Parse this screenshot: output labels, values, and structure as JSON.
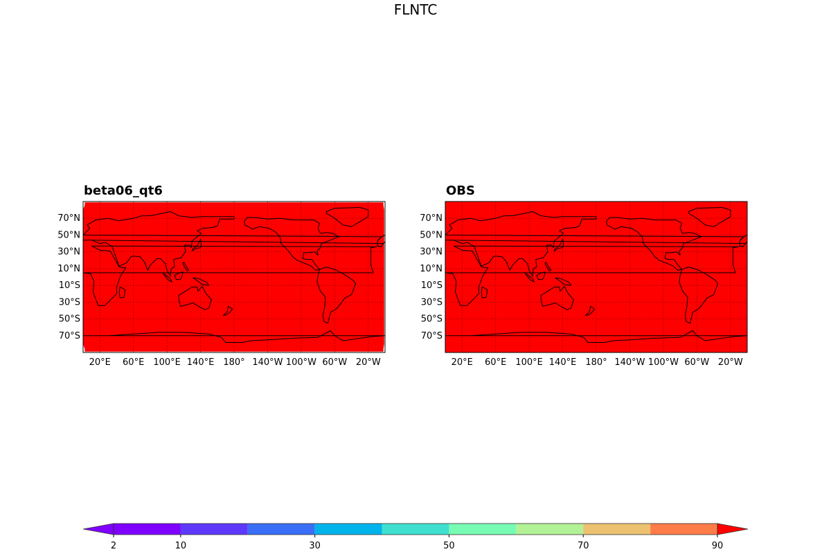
{
  "figure": {
    "title": "FLNTC"
  },
  "colors": {
    "field_fill": "#ff0000",
    "grid_line": "#8b0000",
    "coastline": "#000000"
  },
  "panels": [
    {
      "id": "left",
      "title": "beta06_qt6",
      "field_value_category": "above 90",
      "missing_polar_edges": true
    },
    {
      "id": "right",
      "title": "OBS",
      "field_value_category": "above 90",
      "missing_polar_edges": false
    }
  ],
  "axes": {
    "lat_labels": [
      "70°N",
      "50°N",
      "30°N",
      "10°N",
      "10°S",
      "30°S",
      "50°S",
      "70°S"
    ],
    "lat_values": [
      70,
      50,
      30,
      10,
      -10,
      -30,
      -50,
      -70
    ],
    "lon_labels": [
      "20°E",
      "60°E",
      "100°E",
      "140°E",
      "180°",
      "140°W",
      "100°W",
      "60°W",
      "20°W"
    ],
    "lon_values": [
      20,
      60,
      100,
      140,
      180,
      220,
      260,
      300,
      340
    ],
    "lon_range": [
      0,
      360
    ],
    "lat_range": [
      -90,
      90
    ],
    "projection": "PlateCarree centered on 180°",
    "gridlines": true
  },
  "colorbar": {
    "levels": [
      2,
      10,
      20,
      30,
      40,
      50,
      60,
      70,
      80,
      90
    ],
    "tick_labels": [
      "2",
      "10",
      "30",
      "50",
      "70",
      "90"
    ],
    "tick_values": [
      2,
      10,
      30,
      50,
      70,
      90
    ],
    "colors": [
      "#7f00ff",
      "#5e39fc",
      "#3a6ef6",
      "#00b4eb",
      "#3fe0d0",
      "#78fcb4",
      "#b2f296",
      "#ecc270",
      "#ff7c48",
      "#ff2a14"
    ],
    "under_color": "#8000ff",
    "over_color": "#ff0000",
    "extend": "both",
    "orientation": "horizontal"
  }
}
